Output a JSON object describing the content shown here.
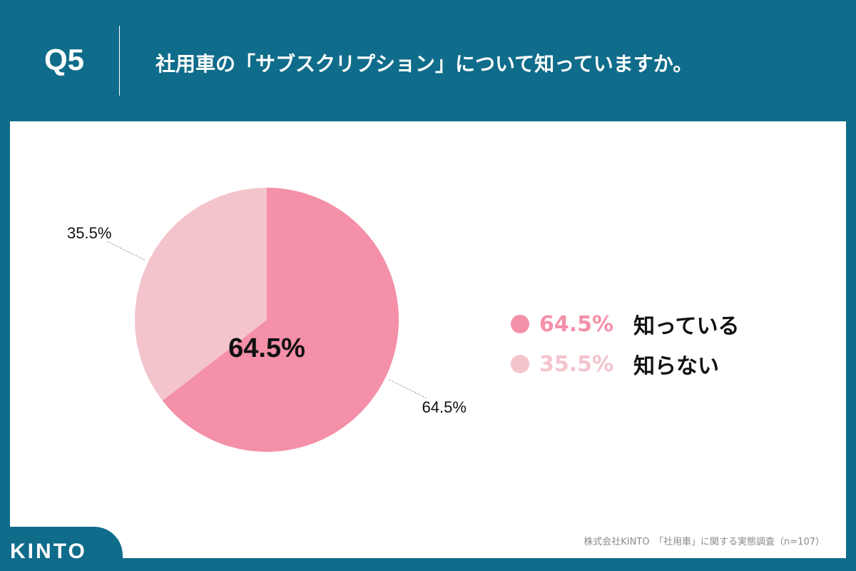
{
  "header": {
    "q_label": "Q5",
    "question": "社用車の「サブスクリプション」について知っていますか。"
  },
  "chart_data": {
    "type": "pie",
    "slices": [
      {
        "name": "知っている",
        "value": 64.5,
        "label": "64.5%",
        "color": "#f490a8"
      },
      {
        "name": "知らない",
        "value": 35.5,
        "label": "35.5%",
        "color": "#f4c4cc"
      }
    ],
    "center_label": "64.5%",
    "legend_position": "right"
  },
  "legend": [
    {
      "pct": "64.5%",
      "name": "知っている",
      "color": "#f490a8"
    },
    {
      "pct": "35.5%",
      "name": "知らない",
      "color": "#f4c4cc"
    }
  ],
  "footer": {
    "logo": "KINTO",
    "source": "株式会社KINTO　「社用車」に関する実態調査（n=107）"
  },
  "colors": {
    "brand": "#0f6c8a",
    "panel": "#ffffff"
  }
}
